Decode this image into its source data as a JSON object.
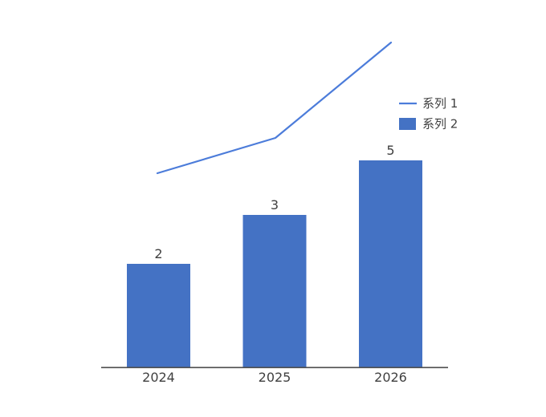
{
  "chart_data": {
    "type": "combo",
    "title": "",
    "categories": [
      "2024",
      "2025",
      "2026"
    ],
    "series": [
      {
        "name": "系列 1",
        "type": "line",
        "values_estimated": [
          4,
          5,
          8
        ],
        "axis": "secondary-unlabeled",
        "data_labels_shown": false
      },
      {
        "name": "系列 2",
        "type": "bar",
        "values": [
          2,
          3,
          5
        ],
        "data_labels": [
          "2",
          "3",
          "5"
        ],
        "data_labels_shown": true
      }
    ],
    "legend": {
      "position": "right",
      "entries": [
        "系列 1",
        "系列 2"
      ]
    },
    "axes": {
      "x_axis_shown": true,
      "y_axis_shown": false,
      "gridlines": false
    },
    "colors": {
      "bar_fill": "#4472C4",
      "line_stroke": "#4C7CDA",
      "axis_line": "#4D4D4D",
      "text": "#404040"
    },
    "background": "#FFFFFF"
  }
}
